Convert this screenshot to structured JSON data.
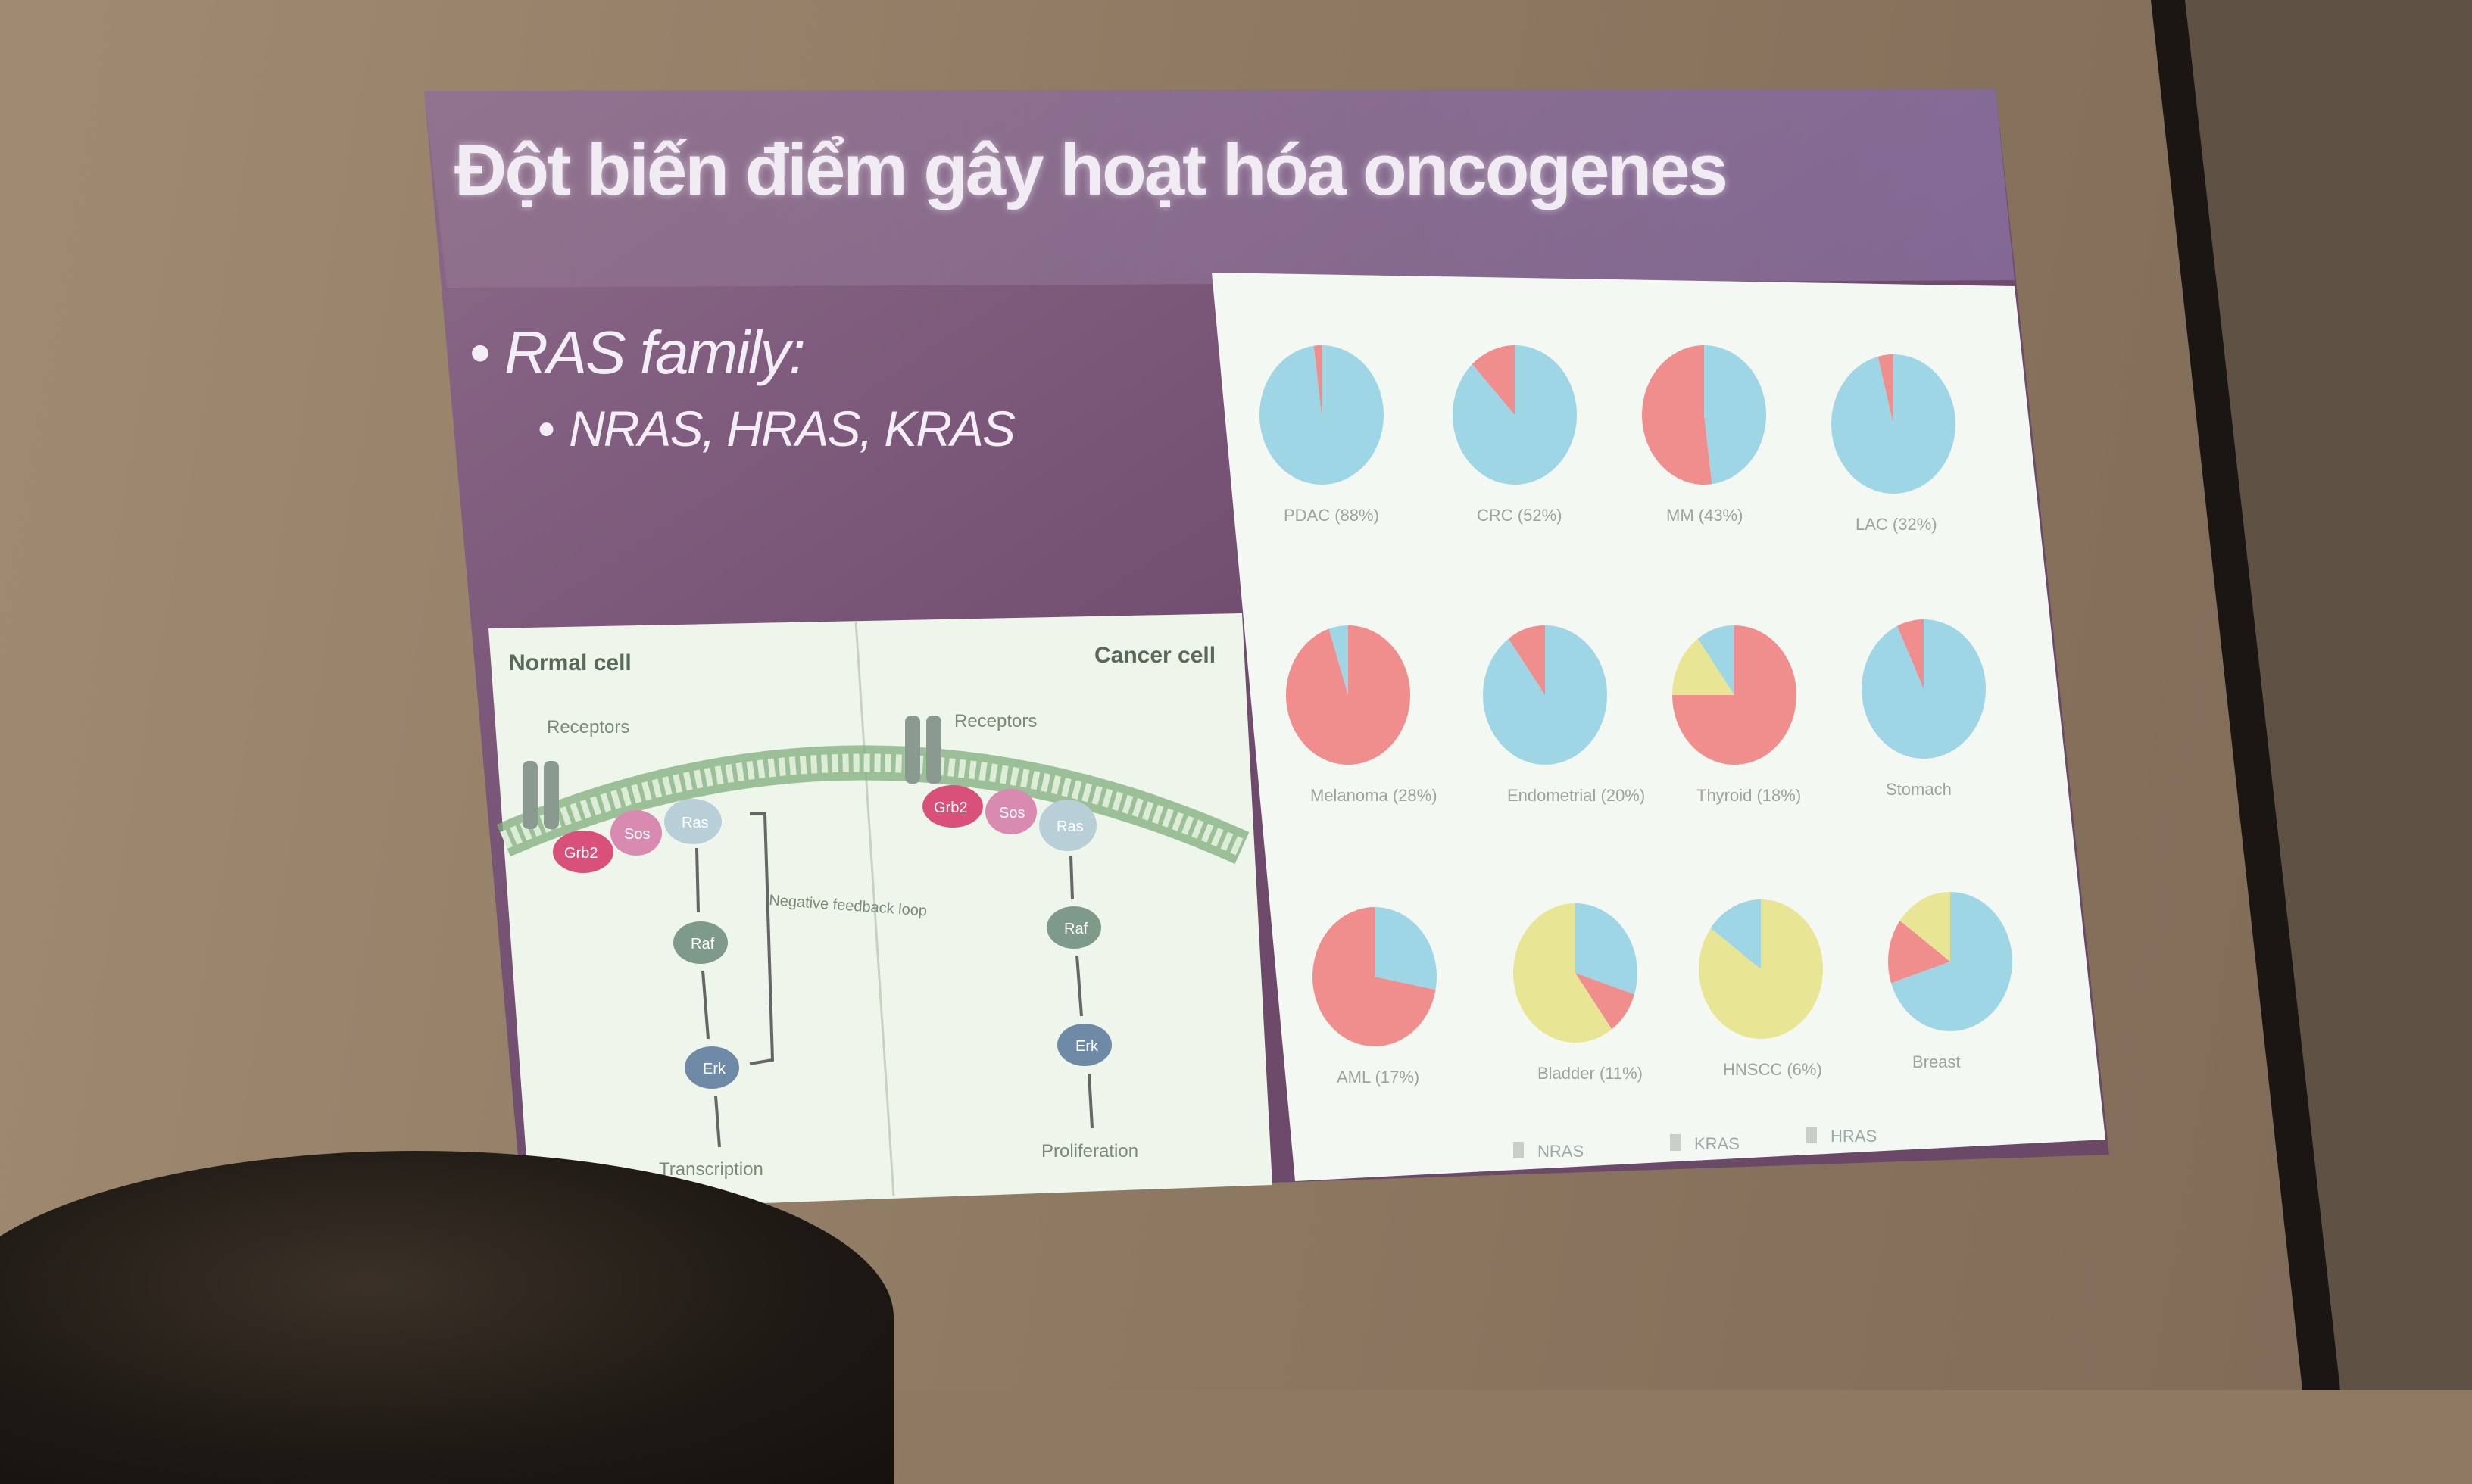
{
  "slide": {
    "title": "Đột biến điểm gây hoạt hóa oncogenes",
    "bullets": [
      "RAS family:",
      "NRAS, HRAS, KRAS"
    ]
  },
  "pathway_figure": {
    "normal_cell_label": "Normal cell",
    "cancer_cell_label": "Cancer cell",
    "receptors_label": "Receptors",
    "grb2_label": "Grb2",
    "sos_label": "Sos",
    "ras_label": "Ras",
    "raf_label": "Raf",
    "erk_label": "Erk",
    "negative_feedback_label": "Negative feedback loop",
    "transcription_label": "Transcription",
    "proliferation_label": "Proliferation"
  },
  "pie_figure": {
    "pies": [
      {
        "label": "PDAC (88%)"
      },
      {
        "label": "CRC (52%)"
      },
      {
        "label": "MM (43%)"
      },
      {
        "label": "LAC (32%)"
      },
      {
        "label": "Melanoma (28%)"
      },
      {
        "label": "Endometrial (20%)"
      },
      {
        "label": "Thyroid (18%)"
      },
      {
        "label": "Stomach"
      },
      {
        "label": "AML (17%)"
      },
      {
        "label": "Bladder (11%)"
      },
      {
        "label": "HNSCC (6%)"
      },
      {
        "label": "Breast"
      }
    ],
    "legend": [
      "NRAS",
      "KRAS",
      "HRAS"
    ]
  },
  "colors": {
    "kras": "#9fd6e6",
    "nras": "#f08d8d",
    "hras": "#e8e695"
  }
}
